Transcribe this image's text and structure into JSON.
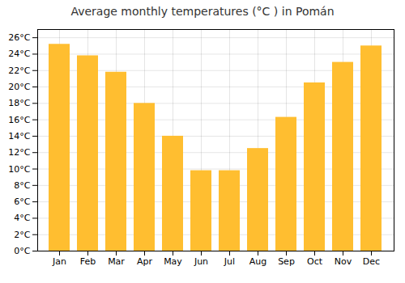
{
  "chart_data": {
    "type": "bar",
    "title": "Average monthly temperatures (°C ) in Pomán",
    "categories": [
      "Jan",
      "Feb",
      "Mar",
      "Apr",
      "May",
      "Jun",
      "Jul",
      "Aug",
      "Sep",
      "Oct",
      "Nov",
      "Dec"
    ],
    "values": [
      25.2,
      23.8,
      21.8,
      18.0,
      14.0,
      9.8,
      9.8,
      12.5,
      16.3,
      20.5,
      23.0,
      25.0
    ],
    "color": "#FFBE30",
    "ylim": [
      0,
      27
    ],
    "yticks": [
      {
        "value": 0,
        "label": "0°C"
      },
      {
        "value": 2,
        "label": "2°C"
      },
      {
        "value": 4,
        "label": "4°C"
      },
      {
        "value": 6,
        "label": "6°C"
      },
      {
        "value": 8,
        "label": "8°C"
      },
      {
        "value": 10,
        "label": "10°C"
      },
      {
        "value": 12,
        "label": "12°C"
      },
      {
        "value": 14,
        "label": "14°C"
      },
      {
        "value": 16,
        "label": "16°C"
      },
      {
        "value": 18,
        "label": "18°C"
      },
      {
        "value": 20,
        "label": "20°C"
      },
      {
        "value": 22,
        "label": "22°C"
      },
      {
        "value": 24,
        "label": "24°C"
      },
      {
        "value": 26,
        "label": "26°C"
      }
    ],
    "grid": true
  }
}
